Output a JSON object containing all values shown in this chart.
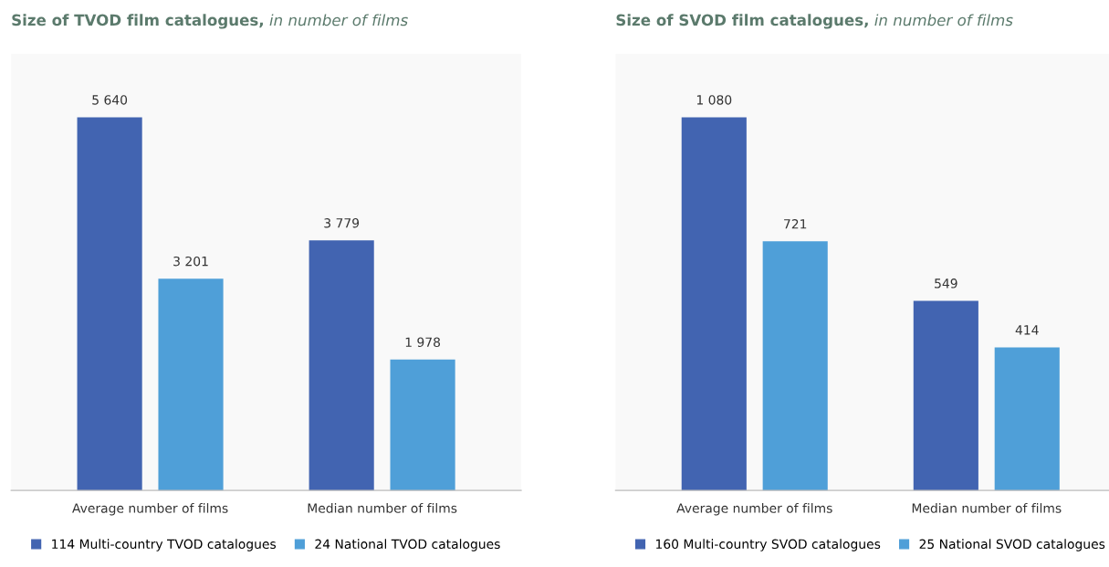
{
  "chart_data": [
    {
      "type": "bar",
      "title": "Size of TVOD film catalogues,",
      "subtitle": "in number of films",
      "categories": [
        "Average number of films",
        "Median number of films"
      ],
      "legend": "bottom",
      "data_labels": true,
      "grid": false,
      "series": [
        {
          "name": "114 Multi-country TVOD catalogues",
          "color": "#4264b1",
          "values": [
            5640,
            3779
          ],
          "value_labels": [
            "5 640",
            "3 779"
          ]
        },
        {
          "name": "24 National TVOD catalogues",
          "color": "#4f9fd8",
          "values": [
            3201,
            1978
          ],
          "value_labels": [
            "3 201",
            "1 978"
          ]
        }
      ]
    },
    {
      "type": "bar",
      "title": "Size of SVOD film catalogues,",
      "subtitle": "in number of films",
      "categories": [
        "Average number of films",
        "Median number of films"
      ],
      "legend": "bottom",
      "data_labels": true,
      "grid": false,
      "series": [
        {
          "name": "160 Multi-country SVOD catalogues",
          "color": "#4264b1",
          "values": [
            1080,
            549
          ],
          "value_labels": [
            "1 080",
            "549"
          ]
        },
        {
          "name": "25 National SVOD catalogues",
          "color": "#4f9fd8",
          "values": [
            721,
            414
          ],
          "value_labels": [
            "721",
            "414"
          ]
        }
      ]
    }
  ]
}
